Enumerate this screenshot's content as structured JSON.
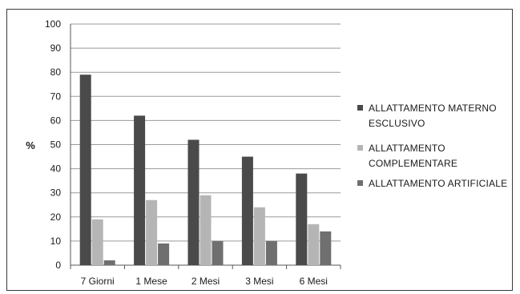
{
  "chart_data": {
    "type": "bar",
    "title": "",
    "xlabel": "",
    "ylabel": "%",
    "ylim": [
      0,
      100
    ],
    "yticks": [
      0,
      10,
      20,
      30,
      40,
      50,
      60,
      70,
      80,
      90,
      100
    ],
    "grid": true,
    "legend_position": "right",
    "categories": [
      "7 Giorni",
      "1 Mese",
      "2 Mesi",
      "3 Mesi",
      "6 Mesi"
    ],
    "series": [
      {
        "name": "ALLATTAMENTO MATERNO ESCLUSIVO",
        "name_lines": [
          "ALLATTAMENTO MATERNO",
          "ESCLUSIVO"
        ],
        "color": "#4a4a4a",
        "values": [
          79,
          62,
          52,
          45,
          38
        ]
      },
      {
        "name": "ALLATTAMENTO COMPLEMENTARE",
        "name_lines": [
          "ALLATTAMENTO",
          "COMPLEMENTARE"
        ],
        "color": "#b5b5b5",
        "values": [
          19,
          27,
          29,
          24,
          17
        ]
      },
      {
        "name": "ALLATTAMENTO ARTIFICIALE",
        "name_lines": [
          "ALLATTAMENTO ARTIFICIALE"
        ],
        "color": "#6f6f6f",
        "values": [
          2,
          9,
          10,
          10,
          14
        ]
      }
    ]
  }
}
